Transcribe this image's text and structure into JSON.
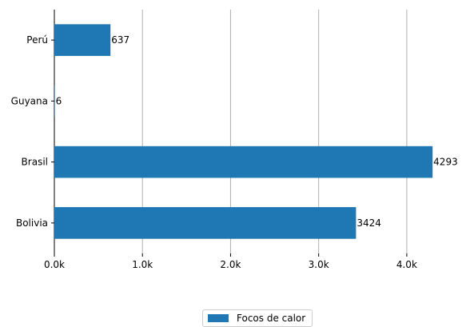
{
  "chart_data": {
    "type": "bar",
    "orientation": "horizontal",
    "categories": [
      "Perú",
      "Guyana",
      "Brasil",
      "Bolivia"
    ],
    "series": [
      {
        "name": "Focos de calor",
        "values": [
          637,
          6,
          4293,
          3424
        ],
        "color": "#1f77b4"
      }
    ],
    "data_labels": [
      "637",
      "6",
      "4293",
      "3424"
    ],
    "xlim": [
      0,
      4500
    ],
    "xticks": [
      {
        "value": 0,
        "label": "0.0k"
      },
      {
        "value": 1000,
        "label": "1.0k"
      },
      {
        "value": 2000,
        "label": "2.0k"
      },
      {
        "value": 3000,
        "label": "3.0k"
      },
      {
        "value": 4000,
        "label": "4.0k"
      }
    ],
    "grid": "vertical",
    "legend_position": "bottom-center",
    "title": "",
    "xlabel": "",
    "ylabel": ""
  },
  "legend": {
    "label": "Focos de calor",
    "color": "#1f77b4"
  }
}
